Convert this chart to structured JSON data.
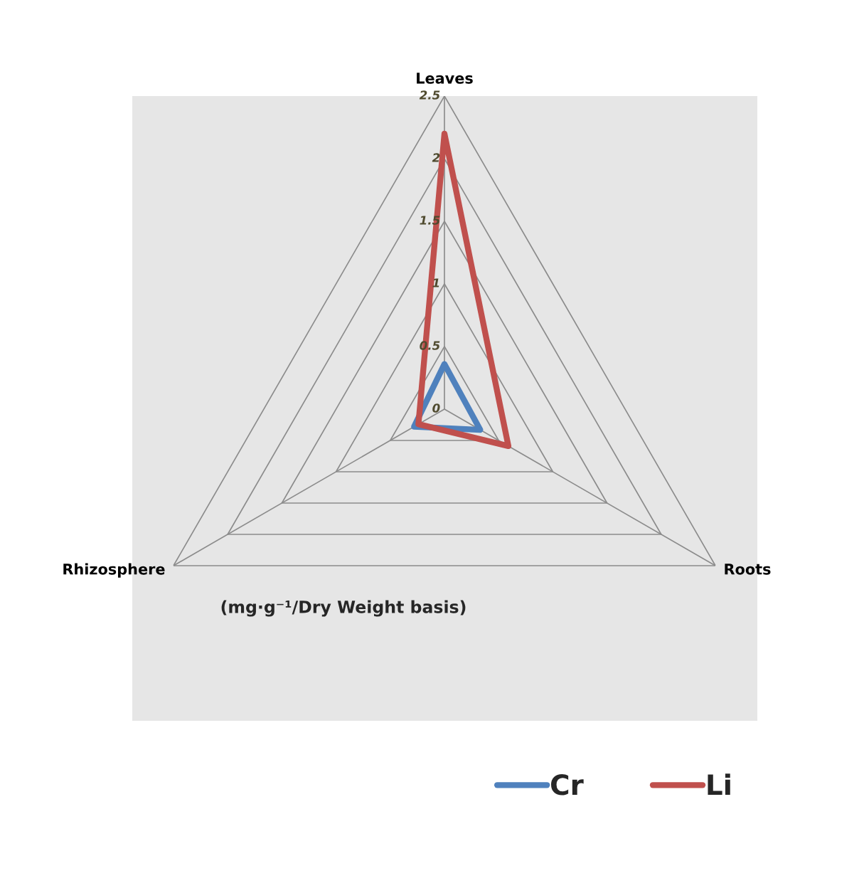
{
  "chart_data": {
    "type": "radar",
    "categories": [
      "Leaves",
      "Roots",
      "Rhizosphere"
    ],
    "series": [
      {
        "name": "Cr",
        "color": "#4f81bd",
        "values": [
          0.36,
          0.33,
          0.28
        ]
      },
      {
        "name": "Li",
        "color": "#c0504d",
        "values": [
          2.2,
          0.59,
          0.24
        ]
      }
    ],
    "ylim": [
      0,
      2.5
    ],
    "yticks": [
      0,
      0.5,
      1,
      1.5,
      2,
      2.5
    ],
    "grid": true,
    "legend": "bottom right",
    "marker": "none",
    "line_style": "solid",
    "annotations": [
      "(mg·g⁻¹/Dry Weight basis)"
    ]
  }
}
